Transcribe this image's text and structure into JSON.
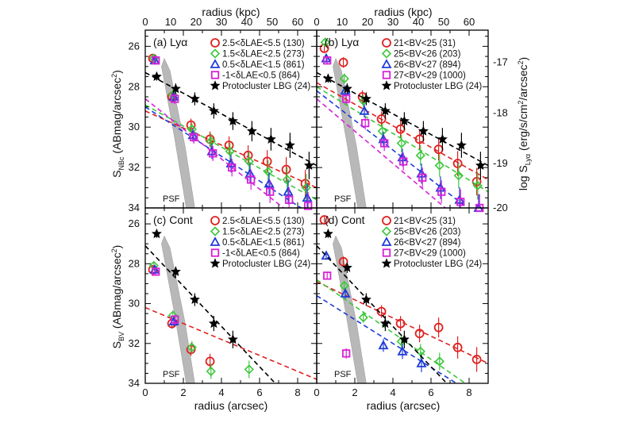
{
  "figure": {
    "top_axis_title": "radius (kpc)",
    "bottom_axis_title": "radius (arcsec)",
    "left_top_title": "S_NBc (ABmag/arcsec^2)",
    "left_bottom_title": "S_BV (ABmag/arcsec^2)",
    "right_title": "log S_Lyα (erg/s/cm^2/arcsec^2)",
    "x_ticks": [
      "0",
      "2",
      "4",
      "6",
      "8"
    ],
    "kpc_ticks": [
      "0",
      "10",
      "20",
      "30",
      "40",
      "50",
      "60"
    ],
    "mag_ticks": [
      "26",
      "28",
      "30",
      "32",
      "34"
    ],
    "log_ticks": [
      "-17",
      "-18",
      "-19",
      "-20"
    ],
    "psf_label": "PSF"
  },
  "chart_data": [
    {
      "type": "scatter",
      "panel": "(a) Lyα",
      "xlabel": "radius (arcsec)",
      "ylabel": "S_NBc (ABmag/arcsec^2)",
      "xlim": [
        0,
        9
      ],
      "ylim": [
        34,
        25.2
      ],
      "legend_position": "top-right",
      "series": [
        {
          "name": "2.5<δLAE<5.5 (130)",
          "color": "#e02020",
          "marker": "circle",
          "x": [
            0.5,
            1.5,
            2.5,
            3.5,
            4.5,
            5.5,
            6.5,
            7.5,
            8.5
          ],
          "y": [
            26.6,
            28.5,
            29.9,
            30.6,
            30.9,
            31.4,
            31.7,
            32.1,
            32.8
          ],
          "fit": [
            [
              0,
              29.2
            ],
            [
              9,
              33.0
            ]
          ]
        },
        {
          "name": "1.5<δLAE<2.5 (273)",
          "color": "#3cc83c",
          "marker": "diamond",
          "x": [
            0.5,
            1.5,
            2.5,
            3.5,
            4.5,
            5.5,
            6.5,
            7.5,
            8.5
          ],
          "y": [
            26.6,
            28.4,
            30.1,
            30.7,
            31.2,
            31.7,
            32.2,
            32.6,
            33.0
          ],
          "fit": [
            [
              0,
              28.9
            ],
            [
              9,
              33.6
            ]
          ]
        },
        {
          "name": "0.5<δLAE<1.5 (861)",
          "color": "#1e3cd8",
          "marker": "triangle",
          "x": [
            0.5,
            1.5,
            2.5,
            3.5,
            4.5,
            5.5,
            6.5,
            7.5,
            8.5
          ],
          "y": [
            26.7,
            28.5,
            30.4,
            31.2,
            31.8,
            32.3,
            32.8,
            33.2,
            33.5
          ],
          "fit": [
            [
              0,
              29.0
            ],
            [
              9,
              34.5
            ]
          ]
        },
        {
          "name": "-1<δLAE<0.5 (864)",
          "color": "#d820d8",
          "marker": "square",
          "x": [
            0.5,
            1.5,
            2.5,
            3.5,
            4.5,
            5.5,
            6.5,
            7.5,
            8.5
          ],
          "y": [
            26.7,
            28.6,
            30.5,
            31.3,
            32.0,
            32.6,
            33.2,
            33.6,
            33.9
          ],
          "fit": [
            [
              0,
              28.6
            ],
            [
              9,
              35.3
            ]
          ]
        },
        {
          "name": "Protocluster LBG (24)",
          "color": "#000000",
          "marker": "star",
          "x": [
            0.5,
            1.5,
            2.5,
            3.5,
            4.5,
            5.5,
            6.5,
            7.5,
            8.5
          ],
          "y": [
            27.5,
            28.1,
            28.6,
            29.2,
            29.7,
            30.2,
            30.6,
            30.9,
            31.9
          ],
          "fit": [
            [
              0,
              27.3
            ],
            [
              9,
              31.9
            ]
          ]
        }
      ]
    },
    {
      "type": "scatter",
      "panel": "(b) Lyα",
      "xlabel": "radius (arcsec)",
      "ylabel": "log S_Lyα (erg/s/cm^2/arcsec^2)",
      "xlim": [
        0,
        9
      ],
      "ylim": [
        34,
        25.2
      ],
      "legend_position": "top-right",
      "series": [
        {
          "name": "21<BV<25 (31)",
          "color": "#e02020",
          "marker": "circle",
          "x": [
            0.5,
            1.5,
            2.5,
            3.5,
            4.5,
            5.5,
            6.5,
            7.5,
            8.5
          ],
          "y": [
            26.1,
            26.8,
            28.5,
            29.6,
            30.1,
            30.6,
            31.1,
            31.8,
            32.7
          ],
          "fit": [
            [
              0,
              27.8
            ],
            [
              9,
              32.6
            ]
          ]
        },
        {
          "name": "25<BV<26 (203)",
          "color": "#3cc83c",
          "marker": "diamond",
          "x": [
            0.5,
            1.5,
            2.5,
            3.5,
            4.5,
            5.5,
            6.5,
            7.5,
            8.5
          ],
          "y": [
            25.8,
            27.6,
            28.7,
            30.2,
            30.8,
            31.4,
            31.9,
            32.4,
            32.9
          ],
          "fit": [
            [
              0,
              28.0
            ],
            [
              9,
              33.2
            ]
          ]
        },
        {
          "name": "26<BV<27 (894)",
          "color": "#1e3cd8",
          "marker": "triangle",
          "x": [
            0.5,
            1.5,
            2.5,
            3.5,
            4.5,
            5.5,
            6.5,
            7.5,
            8.5
          ],
          "y": [
            26.6,
            28.2,
            29.2,
            30.6,
            31.5,
            32.3,
            33.0,
            33.6,
            34.0
          ],
          "fit": [
            [
              0,
              28.2
            ],
            [
              9,
              34.8
            ]
          ]
        },
        {
          "name": "27<BV<29 (1000)",
          "color": "#d820d8",
          "marker": "square",
          "x": [
            0.5,
            1.5,
            2.5,
            3.5,
            4.5,
            5.5,
            6.5,
            7.5,
            8.5
          ],
          "y": [
            26.7,
            28.6,
            29.8,
            30.8,
            31.7,
            32.5,
            33.2,
            33.7,
            34.0
          ],
          "fit": [
            [
              0,
              28.6
            ],
            [
              9,
              35.8
            ]
          ]
        },
        {
          "name": "Protocluster LBG (24)",
          "color": "#000000",
          "marker": "star",
          "x": [
            0.5,
            1.5,
            2.5,
            3.5,
            4.5,
            5.5,
            6.5,
            7.5,
            8.5
          ],
          "y": [
            27.6,
            28.1,
            28.6,
            29.2,
            29.7,
            30.2,
            30.6,
            30.9,
            31.9
          ],
          "fit": [
            [
              0,
              27.3
            ],
            [
              9,
              31.9
            ]
          ]
        }
      ]
    },
    {
      "type": "scatter",
      "panel": "(c) Cont",
      "xlabel": "radius (arcsec)",
      "ylabel": "S_BV (ABmag/arcsec^2)",
      "xlim": [
        0,
        9
      ],
      "ylim": [
        34,
        25.2
      ],
      "legend_position": "top-right",
      "series": [
        {
          "name": "2.5<δLAE<5.5 (130)",
          "color": "#e02020",
          "marker": "circle",
          "x": [
            0.5,
            1.5,
            2.5,
            3.5
          ],
          "y": [
            28.3,
            31.0,
            32.3,
            32.9
          ],
          "fit": [
            [
              0,
              30.2
            ],
            [
              9,
              33.8
            ]
          ]
        },
        {
          "name": "1.5<δLAE<2.5 (273)",
          "color": "#3cc83c",
          "marker": "diamond",
          "x": [
            0.5,
            1.5,
            2.5,
            3.5,
            5.5
          ],
          "y": [
            28.1,
            30.6,
            32.2,
            33.4,
            33.3
          ],
          "fit": null
        },
        {
          "name": "0.5<δLAE<1.5 (861)",
          "color": "#1e3cd8",
          "marker": "triangle",
          "x": [
            0.5,
            1.5
          ],
          "y": [
            28.3,
            30.9
          ],
          "fit": null
        },
        {
          "name": "-1<δLAE<0.5 (864)",
          "color": "#d820d8",
          "marker": "square",
          "x": [
            0.5,
            1.5
          ],
          "y": [
            28.4,
            30.8
          ],
          "fit": null
        },
        {
          "name": "Protocluster LBG (24)",
          "color": "#000000",
          "marker": "star",
          "x": [
            0.5,
            1.5,
            2.5,
            3.5,
            4.5
          ],
          "y": [
            26.5,
            28.4,
            29.8,
            31.0,
            31.8
          ],
          "fit": [
            [
              0,
              27.1
            ],
            [
              9,
              36.2
            ]
          ]
        }
      ]
    },
    {
      "type": "scatter",
      "panel": "(d) Cont",
      "xlabel": "radius (arcsec)",
      "ylabel": "S_BV (ABmag/arcsec^2)",
      "xlim": [
        0,
        9
      ],
      "ylim": [
        34,
        25.2
      ],
      "legend_position": "top-right",
      "series": [
        {
          "name": "21<BV<25 (31)",
          "color": "#e02020",
          "marker": "circle",
          "x": [
            0.5,
            1.5,
            3.5,
            4.5,
            5.5,
            6.5,
            7.5,
            8.5
          ],
          "y": [
            25.8,
            27.9,
            30.4,
            31.0,
            31.5,
            31.2,
            32.2,
            32.8
          ],
          "fit": [
            [
              0,
              28.9
            ],
            [
              9,
              33.0
            ]
          ]
        },
        {
          "name": "25<BV<26 (203)",
          "color": "#3cc83c",
          "marker": "diamond",
          "x": [
            1.5,
            2.5,
            4.5,
            5.5,
            6.5
          ],
          "y": [
            29.1,
            30.7,
            31.9,
            32.4,
            32.9
          ],
          "fit": [
            [
              0,
              28.8
            ],
            [
              9,
              34.8
            ]
          ]
        },
        {
          "name": "26<BV<27 (894)",
          "color": "#1e3cd8",
          "marker": "triangle",
          "x": [
            0.5,
            1.5,
            3.5,
            4.5,
            5.5
          ],
          "y": [
            27.6,
            29.5,
            32.1,
            32.4,
            33.0
          ],
          "fit": [
            [
              0,
              29.6
            ],
            [
              9,
              35.0
            ]
          ]
        },
        {
          "name": "27<BV<29 (1000)",
          "color": "#d820d8",
          "marker": "square",
          "x": [
            0.5,
            1.5
          ],
          "y": [
            28.6,
            32.5
          ],
          "fit": null
        },
        {
          "name": "Protocluster LBG (24)",
          "color": "#000000",
          "marker": "star",
          "x": [
            0.5,
            1.5,
            2.5,
            3.5,
            4.5
          ],
          "y": [
            26.5,
            28.2,
            29.8,
            31.0,
            31.8
          ],
          "fit": [
            [
              0,
              27.1
            ],
            [
              9,
              36.2
            ]
          ]
        }
      ]
    }
  ]
}
